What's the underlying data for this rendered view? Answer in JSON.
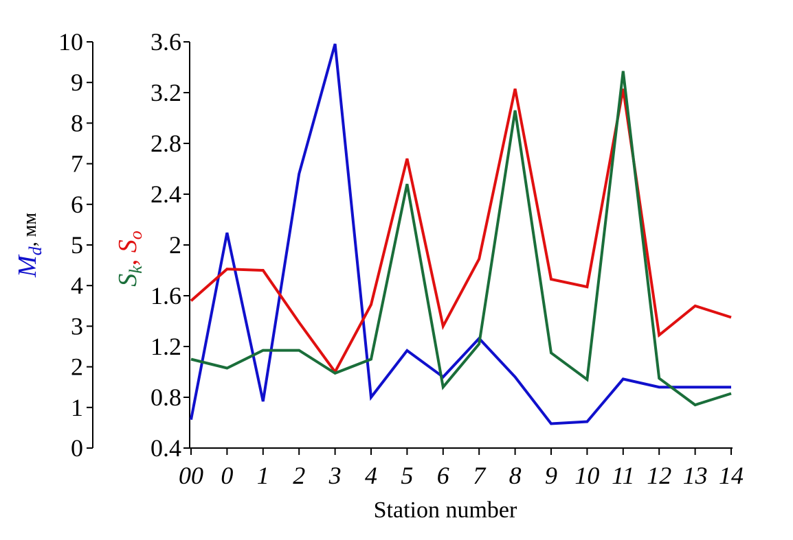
{
  "chart_data": {
    "type": "line",
    "xlabel": "Station number",
    "categories": [
      "00",
      "0",
      "1",
      "2",
      "3",
      "4",
      "5",
      "6",
      "7",
      "8",
      "9",
      "10",
      "11",
      "12",
      "13",
      "14"
    ],
    "left_axis": {
      "label_main": "M",
      "label_sub": "d",
      "label_unit": ", мм",
      "color": "#1010cc",
      "ylim": [
        0,
        10
      ],
      "ticks": [
        "0",
        "1",
        "2",
        "3",
        "4",
        "5",
        "6",
        "7",
        "8",
        "9",
        "10"
      ]
    },
    "right_axis": {
      "label_parts": [
        {
          "main": "S",
          "sub": "k",
          "color": "#1a6e3a"
        },
        {
          "sep": ", "
        },
        {
          "main": "S",
          "sub": "o",
          "color": "#e01010"
        }
      ],
      "ylim": [
        0.4,
        3.6
      ],
      "ticks": [
        "0.4",
        "0.8",
        "1.2",
        "1.6",
        "2",
        "2.4",
        "2.8",
        "3.2",
        "3.6"
      ]
    },
    "series": [
      {
        "key": "Md",
        "axis": "left",
        "color": "#1010cc",
        "values": [
          0.7,
          5.3,
          1.15,
          6.75,
          9.95,
          1.25,
          2.4,
          1.75,
          2.7,
          1.75,
          0.6,
          0.65,
          1.7,
          1.5,
          1.5,
          1.5
        ]
      },
      {
        "key": "So",
        "axis": "right",
        "color": "#e01010",
        "values": [
          1.56,
          1.81,
          1.8,
          1.39,
          1.0,
          1.53,
          2.68,
          1.36,
          1.89,
          3.23,
          1.73,
          1.67,
          3.23,
          1.29,
          1.52,
          1.43
        ]
      },
      {
        "key": "Sk",
        "axis": "right",
        "color": "#1a6e3a",
        "values": [
          1.1,
          1.03,
          1.17,
          1.17,
          0.99,
          1.1,
          2.48,
          0.88,
          1.22,
          3.06,
          1.15,
          0.94,
          3.37,
          0.95,
          0.74,
          0.83
        ]
      }
    ],
    "grid": false,
    "legend": "none"
  }
}
